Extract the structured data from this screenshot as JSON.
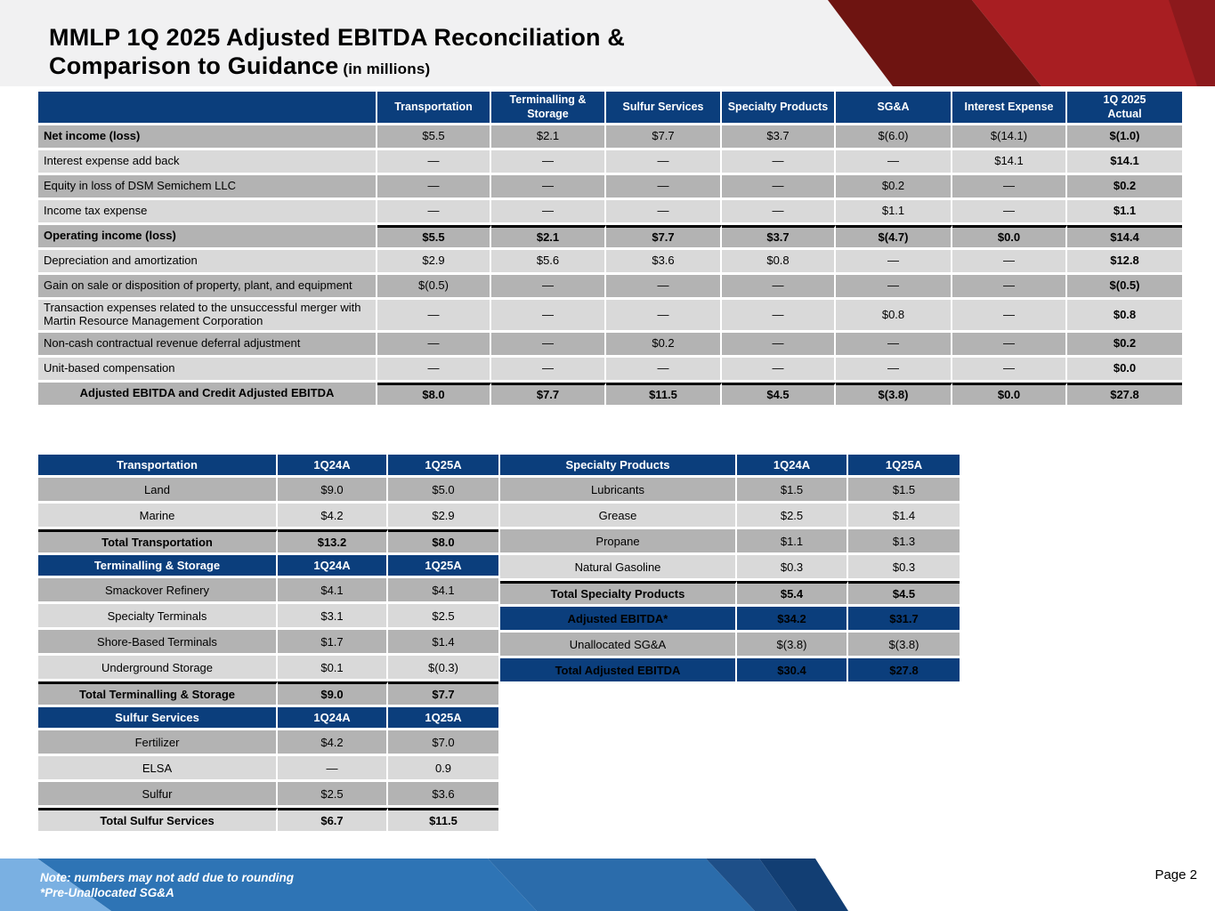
{
  "slide": {
    "title_line1": "MMLP 1Q 2025 Adjusted EBITDA Reconciliation &",
    "title_line2": "Comparison to Guidance",
    "title_suffix": " (in millions)",
    "note_line1": "Note: numbers may not add due to rounding",
    "note_line2": "*Pre-Unallocated SG&A",
    "page_label": "Page 2"
  },
  "colors": {
    "navy_header": "#0b3e7c",
    "row_dark_gray": "#b3b3b3",
    "row_light_gray": "#d9d9d9",
    "title_band_gray": "#f1f1f2",
    "red_bright": "#a81e22",
    "red_maroon": "#6e1411",
    "footer_blue_light": "#7ab0e2",
    "footer_blue_medium": "#2e74b5",
    "footer_blue_medium2": "#2b6cab",
    "footer_navy": "#1e4f88",
    "footer_navy_dark": "#123e73"
  },
  "recon_table": {
    "columns": [
      "Transportation",
      "Terminalling &\nStorage",
      "Sulfur Services",
      "Specialty Products",
      "SG&A",
      "Interest Expense",
      "1Q 2025\nActual"
    ],
    "rows": [
      {
        "label": "Net income (loss)",
        "style": "bold",
        "bg": "dark",
        "values": [
          "$5.5",
          "$2.1",
          "$7.7",
          "$3.7",
          "$(6.0)",
          "$(14.1)",
          "$(1.0)"
        ]
      },
      {
        "label": "Interest expense add back",
        "style": "indent",
        "bg": "light",
        "values": [
          "—",
          "—",
          "—",
          "—",
          "—",
          "$14.1",
          "$14.1"
        ]
      },
      {
        "label": "Equity in loss of DSM Semichem LLC",
        "style": "indent",
        "bg": "dark",
        "values": [
          "—",
          "—",
          "—",
          "—",
          "$0.2",
          "—",
          "$0.2"
        ]
      },
      {
        "label": "Income tax expense",
        "style": "indent",
        "bg": "light",
        "values": [
          "—",
          "—",
          "—",
          "—",
          "$1.1",
          "—",
          "$1.1"
        ]
      },
      {
        "label": "Operating income (loss)",
        "style": "bold",
        "bg": "dark",
        "topline": true,
        "bold_values": true,
        "values": [
          "$5.5",
          "$2.1",
          "$7.7",
          "$3.7",
          "$(4.7)",
          "$0.0",
          "$14.4"
        ]
      },
      {
        "label": "Depreciation and amortization",
        "style": "indent",
        "bg": "light",
        "values": [
          "$2.9",
          "$5.6",
          "$3.6",
          "$0.8",
          "—",
          "—",
          "$12.8"
        ]
      },
      {
        "label": "Gain on sale or disposition of property, plant, and equipment",
        "style": "indent",
        "bg": "dark",
        "values": [
          "$(0.5)",
          "—",
          "—",
          "—",
          "—",
          "—",
          "$(0.5)"
        ]
      },
      {
        "label": "Transaction expenses related to the unsuccessful merger with Martin Resource Management Corporation",
        "style": "indent",
        "bg": "light",
        "values": [
          "—",
          "—",
          "—",
          "—",
          "$0.8",
          "—",
          "$0.8"
        ]
      },
      {
        "label": "Non-cash contractual revenue deferral adjustment",
        "style": "indent",
        "bg": "dark",
        "values": [
          "—",
          "—",
          "$0.2",
          "—",
          "—",
          "—",
          "$0.2"
        ]
      },
      {
        "label": "Unit-based compensation",
        "style": "indent",
        "bg": "light",
        "values": [
          "—",
          "—",
          "—",
          "—",
          "—",
          "—",
          "$0.0"
        ]
      },
      {
        "label": "Adjusted EBITDA and Credit Adjusted EBITDA",
        "style": "total",
        "bg": "dark",
        "topline": true,
        "bold_values": true,
        "values": [
          "$8.0",
          "$7.7",
          "$11.5",
          "$4.5",
          "$(3.8)",
          "$0.0",
          "$27.8"
        ]
      }
    ]
  },
  "segment_left": {
    "rows": [
      {
        "type": "header",
        "label": "Transportation",
        "values": [
          "1Q24A",
          "1Q25A"
        ]
      },
      {
        "type": "data",
        "bg": "dark",
        "label": "Land",
        "values": [
          "$9.0",
          "$5.0"
        ]
      },
      {
        "type": "data",
        "bg": "light",
        "label": "Marine",
        "values": [
          "$4.2",
          "$2.9"
        ]
      },
      {
        "type": "total",
        "bg": "dark",
        "label": "Total Transportation",
        "values": [
          "$13.2",
          "$8.0"
        ]
      },
      {
        "type": "header",
        "label": "Terminalling & Storage",
        "values": [
          "1Q24A",
          "1Q25A"
        ]
      },
      {
        "type": "data",
        "bg": "dark",
        "label": "Smackover Refinery",
        "values": [
          "$4.1",
          "$4.1"
        ]
      },
      {
        "type": "data",
        "bg": "light",
        "label": "Specialty Terminals",
        "values": [
          "$3.1",
          "$2.5"
        ]
      },
      {
        "type": "data",
        "bg": "dark",
        "label": "Shore-Based Terminals",
        "values": [
          "$1.7",
          "$1.4"
        ]
      },
      {
        "type": "data",
        "bg": "light",
        "label": "Underground Storage",
        "values": [
          "$0.1",
          "$(0.3)"
        ]
      },
      {
        "type": "total",
        "bg": "dark",
        "label": "Total Terminalling & Storage",
        "values": [
          "$9.0",
          "$7.7"
        ]
      },
      {
        "type": "header",
        "label": "Sulfur Services",
        "values": [
          "1Q24A",
          "1Q25A"
        ]
      },
      {
        "type": "data",
        "bg": "dark",
        "label": "Fertilizer",
        "values": [
          "$4.2",
          "$7.0"
        ]
      },
      {
        "type": "data",
        "bg": "light",
        "label": "ELSA",
        "values": [
          "—",
          "0.9"
        ]
      },
      {
        "type": "data",
        "bg": "dark",
        "label": "Sulfur",
        "values": [
          "$2.5",
          "$3.6"
        ]
      },
      {
        "type": "total",
        "bg": "light",
        "label": "Total Sulfur Services",
        "values": [
          "$6.7",
          "$11.5"
        ]
      }
    ]
  },
  "segment_right": {
    "rows": [
      {
        "type": "header",
        "label": "Specialty Products",
        "values": [
          "1Q24A",
          "1Q25A"
        ]
      },
      {
        "type": "data",
        "bg": "dark",
        "label": "Lubricants",
        "values": [
          "$1.5",
          "$1.5"
        ]
      },
      {
        "type": "data",
        "bg": "light",
        "label": "Grease",
        "values": [
          "$2.5",
          "$1.4"
        ]
      },
      {
        "type": "data",
        "bg": "dark",
        "label": "Propane",
        "values": [
          "$1.1",
          "$1.3"
        ]
      },
      {
        "type": "data",
        "bg": "light",
        "label": "Natural Gasoline",
        "values": [
          "$0.3",
          "$0.3"
        ]
      },
      {
        "type": "total",
        "bg": "dark",
        "label": "Total Specialty Products",
        "values": [
          "$5.4",
          "$4.5"
        ]
      },
      {
        "type": "highlight",
        "label": "Adjusted EBITDA*",
        "values": [
          "$34.2",
          "$31.7"
        ]
      },
      {
        "type": "data",
        "bg": "dark",
        "label": "Unallocated SG&A",
        "values": [
          "$(3.8)",
          "$(3.8)"
        ]
      },
      {
        "type": "highlight",
        "label": "Total Adjusted EBITDA",
        "values": [
          "$30.4",
          "$27.8"
        ]
      }
    ]
  }
}
